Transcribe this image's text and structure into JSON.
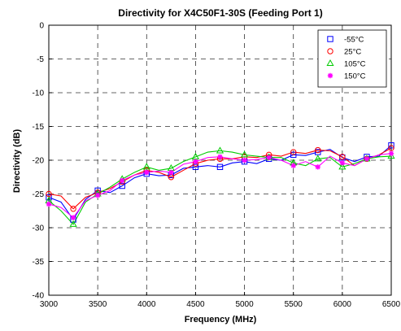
{
  "chart_data": {
    "type": "line",
    "title": "Directivity for X4C50F1-30S (Feeding Port 1)",
    "xlabel": "Frequency (MHz)",
    "ylabel": "Directivity (dB)",
    "xlim": [
      3000,
      6500
    ],
    "ylim": [
      -40,
      0
    ],
    "xticks": [
      3000,
      3500,
      4000,
      4500,
      5000,
      5500,
      6000,
      6500
    ],
    "yticks": [
      0,
      -5,
      -10,
      -15,
      -20,
      -25,
      -30,
      -35,
      -40
    ],
    "xtick_labels": [
      "3000",
      "3500",
      "4000",
      "4500",
      "5000",
      "5500",
      "6000",
      "6500"
    ],
    "ytick_labels": [
      "0",
      "-5",
      "-10",
      "-15",
      "-20",
      "-25",
      "-30",
      "-35",
      "-40"
    ],
    "grid": true,
    "legend_position": "top-right",
    "series": [
      {
        "name": "-55°C",
        "color": "#0000ff",
        "marker": "square",
        "x": [
          3000,
          3125,
          3250,
          3375,
          3500,
          3625,
          3750,
          3875,
          4000,
          4125,
          4250,
          4375,
          4500,
          4625,
          4750,
          4875,
          5000,
          5125,
          5250,
          5375,
          5500,
          5625,
          5750,
          5875,
          6000,
          6125,
          6250,
          6375,
          6500
        ],
        "values": [
          -25.5,
          -26.2,
          -28.8,
          -25.8,
          -24.5,
          -24.8,
          -23.8,
          -22.6,
          -22.0,
          -22.3,
          -22.2,
          -21.2,
          -21.0,
          -20.8,
          -21.0,
          -20.4,
          -20.2,
          -20.5,
          -19.8,
          -20.0,
          -19.2,
          -19.3,
          -18.8,
          -18.4,
          -19.6,
          -20.2,
          -19.5,
          -19.4,
          -17.8
        ]
      },
      {
        "name": "25°C",
        "color": "#ff0000",
        "marker": "circle",
        "x": [
          3000,
          3125,
          3250,
          3375,
          3500,
          3625,
          3750,
          3875,
          4000,
          4125,
          4250,
          4375,
          4500,
          4625,
          4750,
          4875,
          5000,
          5125,
          5250,
          5375,
          5500,
          5625,
          5750,
          5875,
          6000,
          6125,
          6250,
          6375,
          6500
        ],
        "values": [
          -25.0,
          -25.3,
          -27.2,
          -25.5,
          -24.8,
          -24.2,
          -23.2,
          -22.2,
          -21.5,
          -21.8,
          -22.5,
          -21.5,
          -20.5,
          -20.0,
          -19.8,
          -19.8,
          -19.5,
          -19.6,
          -19.2,
          -19.4,
          -18.8,
          -19.0,
          -18.5,
          -18.6,
          -19.5,
          -20.8,
          -19.8,
          -19.2,
          -18.2
        ]
      },
      {
        "name": "105°C",
        "color": "#00cc00",
        "marker": "triangle",
        "x": [
          3000,
          3125,
          3250,
          3375,
          3500,
          3625,
          3750,
          3875,
          4000,
          4125,
          4250,
          4375,
          4500,
          4625,
          4750,
          4875,
          5000,
          5125,
          5250,
          5375,
          5500,
          5625,
          5750,
          5875,
          6000,
          6125,
          6250,
          6375,
          6500
        ],
        "values": [
          -26.0,
          -27.5,
          -29.5,
          -26.2,
          -25.0,
          -24.0,
          -22.8,
          -21.8,
          -21.0,
          -21.5,
          -21.2,
          -20.2,
          -19.5,
          -18.8,
          -18.6,
          -18.8,
          -19.2,
          -19.4,
          -19.6,
          -19.6,
          -20.4,
          -20.8,
          -19.8,
          -19.6,
          -21.0,
          -20.5,
          -19.8,
          -19.5,
          -19.4
        ]
      },
      {
        "name": "150°C",
        "color": "#ff00ff",
        "marker": "star",
        "x": [
          3000,
          3125,
          3250,
          3375,
          3500,
          3625,
          3750,
          3875,
          4000,
          4125,
          4250,
          4375,
          4500,
          4625,
          4750,
          4875,
          5000,
          5125,
          5250,
          5375,
          5500,
          5625,
          5750,
          5875,
          6000,
          6125,
          6250,
          6375,
          6500
        ],
        "values": [
          -26.5,
          -27.0,
          -28.5,
          -26.0,
          -25.2,
          -24.5,
          -23.0,
          -22.2,
          -21.8,
          -21.6,
          -21.8,
          -20.6,
          -20.2,
          -19.6,
          -19.5,
          -19.8,
          -20.0,
          -19.9,
          -19.6,
          -20.0,
          -20.8,
          -20.2,
          -21.0,
          -19.4,
          -20.4,
          -20.8,
          -19.8,
          -19.2,
          -19.0
        ]
      }
    ]
  }
}
